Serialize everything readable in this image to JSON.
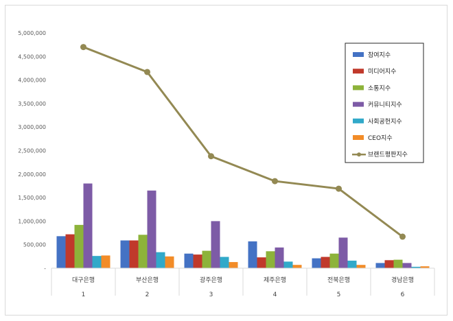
{
  "chart_data": {
    "type": "bar",
    "categories": [
      "대구은행",
      "부산은행",
      "광주은행",
      "제주은행",
      "전북은행",
      "경남은행"
    ],
    "category_index": [
      "1",
      "2",
      "3",
      "4",
      "5",
      "6"
    ],
    "ylim": [
      0,
      5000000
    ],
    "yticks": [
      "-",
      "500,000",
      "1,000,000",
      "1,500,000",
      "2,000,000",
      "2,500,000",
      "3,000,000",
      "3,500,000",
      "4,000,000",
      "4,500,000",
      "5,000,000"
    ],
    "grid": false,
    "legend_position": "top-right",
    "series": [
      {
        "name": "참여지수",
        "type": "bar",
        "color": "#4472C4",
        "values": [
          680000,
          590000,
          310000,
          570000,
          210000,
          110000
        ]
      },
      {
        "name": "미디어지수",
        "type": "bar",
        "color": "#C0392B",
        "values": [
          720000,
          590000,
          290000,
          230000,
          240000,
          170000
        ]
      },
      {
        "name": "소통지수",
        "type": "bar",
        "color": "#8DB33A",
        "values": [
          920000,
          710000,
          370000,
          360000,
          310000,
          180000
        ]
      },
      {
        "name": "커뮤니티지수",
        "type": "bar",
        "color": "#7D5BA6",
        "values": [
          1800000,
          1650000,
          1000000,
          440000,
          650000,
          110000
        ]
      },
      {
        "name": "사회공헌지수",
        "type": "bar",
        "color": "#31A9C9",
        "values": [
          260000,
          340000,
          240000,
          140000,
          160000,
          30000
        ]
      },
      {
        "name": "CEO지수",
        "type": "bar",
        "color": "#F28C28",
        "values": [
          270000,
          250000,
          130000,
          70000,
          70000,
          40000
        ]
      },
      {
        "name": "브랜드평판지수",
        "type": "line",
        "color": "#938953",
        "values": [
          4700000,
          4170000,
          2380000,
          1850000,
          1690000,
          670000
        ]
      }
    ]
  }
}
